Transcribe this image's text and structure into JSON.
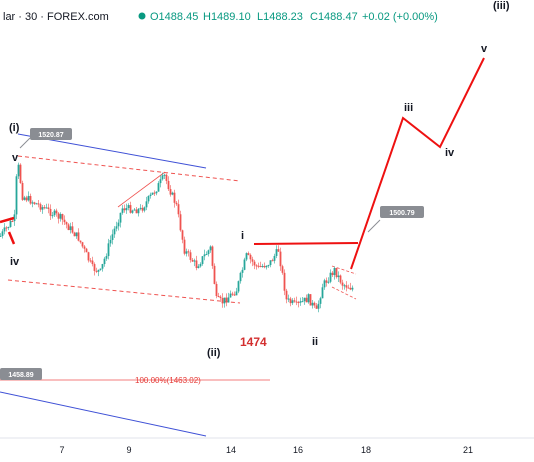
{
  "header": {
    "symbol": "lar · 30 · FOREX.com",
    "open": "O1488.45",
    "high": "H1489.10",
    "low": "L1488.23",
    "close": "C1488.47",
    "change": "+0.02 (+0.00%)"
  },
  "chart_data": {
    "type": "candlestick",
    "x_ticks": [
      "7",
      "9",
      "14",
      "16",
      "18",
      "21"
    ],
    "ylim": [
      1440,
      1535
    ],
    "wave_labels": [
      "(i)",
      "v",
      "iv",
      "i",
      "(ii)",
      "ii",
      "iii",
      "iv",
      "v",
      "(iii)"
    ],
    "price_tags": [
      "1520.87",
      "1500.79",
      "1458.89"
    ],
    "fib_label": "100.00%(1463.02)",
    "target_label": "1474",
    "colors": {
      "up": "#26a69a",
      "down": "#ef5350",
      "projection": "#ee1111",
      "channel": "#3f51d6",
      "fib": "#e53935",
      "tag": "#8a8d93"
    }
  }
}
